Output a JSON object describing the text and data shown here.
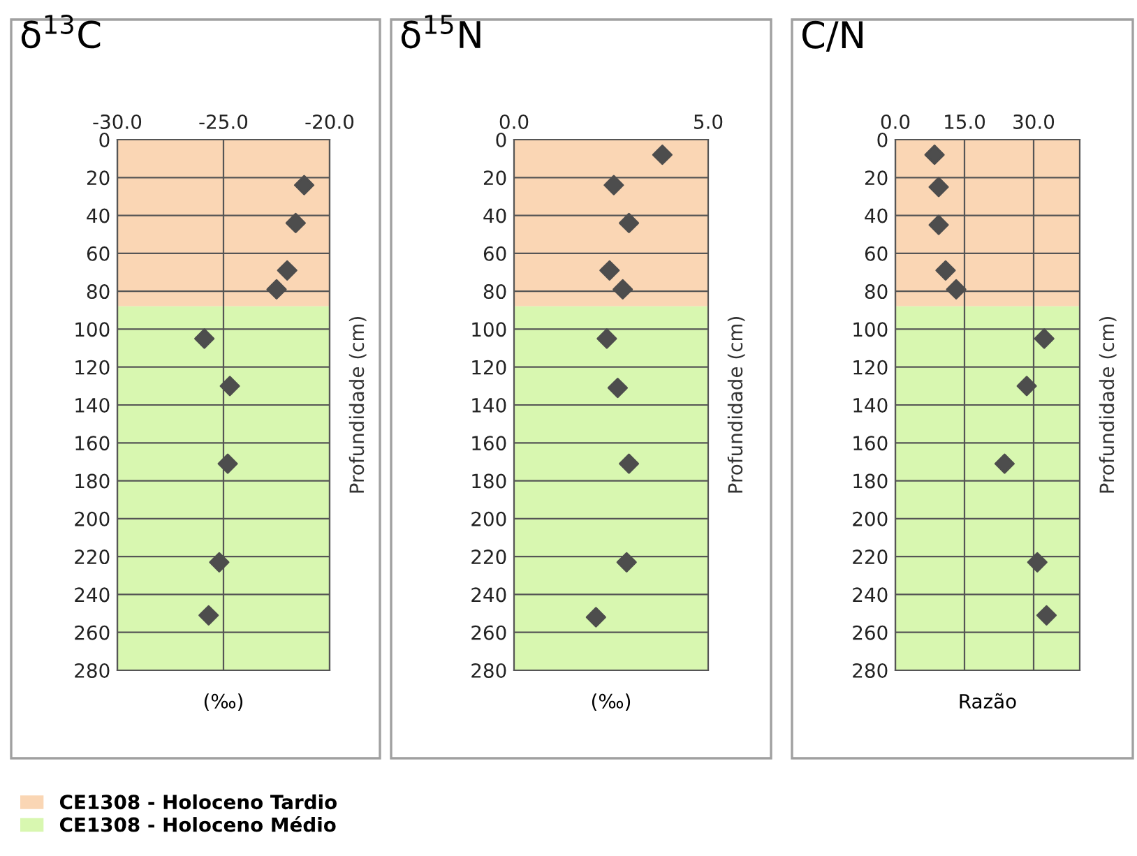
{
  "chart_data": [
    {
      "type": "scatter",
      "title": "δ$^{13}$C",
      "xlabel": "(‰)",
      "ylabel": "Profundidade (cm)",
      "marker": "diamond",
      "grid": true,
      "legend": "bottom left",
      "xlim": [
        -30,
        -20
      ],
      "xticks": [
        {
          "value": -30,
          "label": "-30.0"
        },
        {
          "value": -25,
          "label": "-25.0"
        },
        {
          "value": -20,
          "label": "-20.0"
        }
      ],
      "ylim": [
        280,
        0
      ],
      "yticks": [
        0,
        20,
        40,
        60,
        80,
        100,
        120,
        140,
        160,
        180,
        200,
        220,
        240,
        260,
        280
      ],
      "bands": [
        {
          "axis": "y",
          "from": 0,
          "to": 88,
          "label": "CE1308 - Holoceno Tardio",
          "color": "#fad6b4"
        },
        {
          "axis": "y",
          "from": 88,
          "to": 280,
          "label": "CE1308 - Holoceno Médio",
          "color": "#d8f7b0"
        }
      ],
      "series": [
        {
          "color": "#4d4d4d",
          "x": [
            -21.2,
            -21.6,
            -22.0,
            -22.5,
            -25.9,
            -24.7,
            -24.8,
            -25.2,
            -25.7
          ],
          "values": [
            24,
            44,
            69,
            79,
            105,
            130,
            171,
            223,
            251
          ]
        }
      ]
    },
    {
      "type": "scatter",
      "title": "δ$^{15}$N",
      "xlabel": "(‰)",
      "ylabel": "Profundidade (cm)",
      "marker": "diamond",
      "grid": "y",
      "xlim": [
        0,
        5
      ],
      "xticks": [
        {
          "value": 0,
          "label": "0.0"
        },
        {
          "value": 5,
          "label": "5.0"
        }
      ],
      "ylim": [
        280,
        0
      ],
      "yticks": [
        0,
        20,
        40,
        60,
        80,
        100,
        120,
        140,
        160,
        180,
        200,
        220,
        240,
        260,
        280
      ],
      "bands": [
        {
          "axis": "y",
          "from": 0,
          "to": 88,
          "color": "#fad6b4"
        },
        {
          "axis": "y",
          "from": 88,
          "to": 280,
          "color": "#d8f7b0"
        }
      ],
      "series": [
        {
          "color": "#4d4d4d",
          "x": [
            3.82,
            2.57,
            2.96,
            2.46,
            2.8,
            2.39,
            2.67,
            2.96,
            2.9,
            2.11
          ],
          "values": [
            8,
            24,
            44,
            69,
            79,
            105,
            131,
            171,
            223,
            252
          ]
        }
      ]
    },
    {
      "type": "scatter",
      "title": "C/N",
      "xlabel": "Razão",
      "ylabel": "Profundidade (cm)",
      "marker": "diamond",
      "grid": true,
      "xlim": [
        0,
        40
      ],
      "xticks": [
        {
          "value": 0,
          "label": "0.0"
        },
        {
          "value": 15,
          "label": "15.0"
        },
        {
          "value": 30,
          "label": "30.0"
        }
      ],
      "ylim": [
        280,
        0
      ],
      "yticks": [
        0,
        20,
        40,
        60,
        80,
        100,
        120,
        140,
        160,
        180,
        200,
        220,
        240,
        260,
        280
      ],
      "bands": [
        {
          "axis": "y",
          "from": 0,
          "to": 88,
          "color": "#fad6b4"
        },
        {
          "axis": "y",
          "from": 88,
          "to": 280,
          "color": "#d8f7b0"
        }
      ],
      "series": [
        {
          "color": "#4d4d4d",
          "x": [
            8.5,
            9.4,
            9.4,
            10.9,
            13.2,
            32.3,
            28.5,
            23.7,
            30.8,
            32.8
          ],
          "values": [
            8,
            25,
            45,
            69,
            79,
            105,
            130,
            171,
            223,
            251
          ]
        }
      ]
    }
  ]
}
